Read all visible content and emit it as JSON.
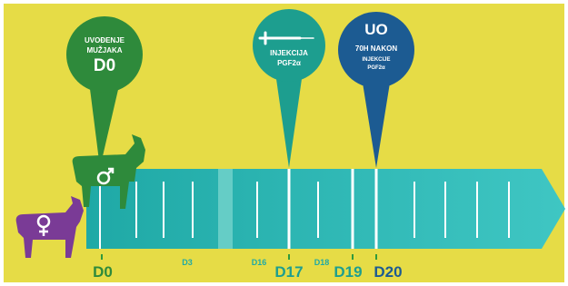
{
  "pins": [
    {
      "lines": [
        "UVOĐENJE",
        "MUŽJAKA",
        "D0"
      ]
    },
    {
      "lines": [
        "INJEKCIJA",
        "PGF2α"
      ]
    },
    {
      "lines": [
        "UO",
        "70H NAKON",
        "INJEKCIJE",
        "PGF2α"
      ]
    }
  ],
  "timeline": {
    "labels": [
      "D0",
      "D3",
      "D16",
      "D17",
      "D18",
      "D19",
      "D20"
    ]
  }
}
